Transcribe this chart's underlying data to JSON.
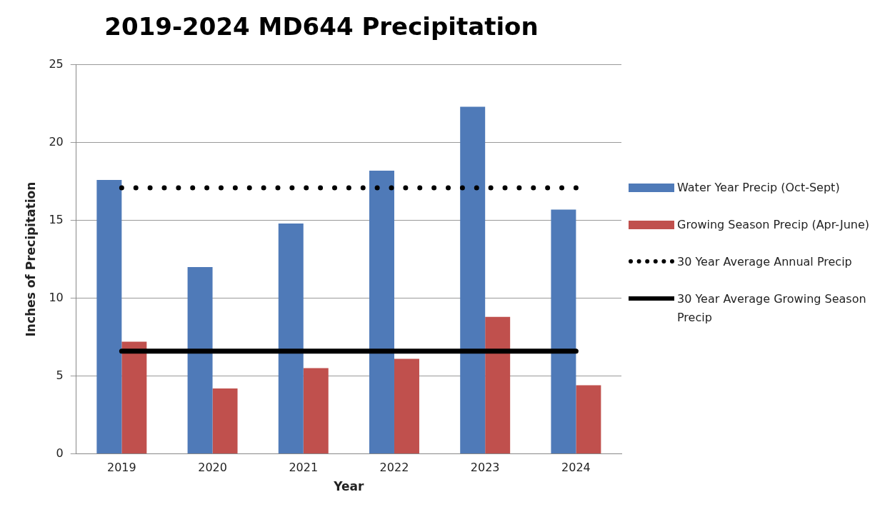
{
  "chart_data": {
    "type": "bar",
    "title": "2019-2024 MD644 Precipitation",
    "xlabel": "Year",
    "ylabel": "Inches of Precipitation",
    "categories": [
      "2019",
      "2020",
      "2021",
      "2022",
      "2023",
      "2024"
    ],
    "series": [
      {
        "name": "Water Year Precip (Oct-Sept)",
        "color": "#4f7ab8",
        "values": [
          17.6,
          12.0,
          14.8,
          18.2,
          22.3,
          15.7
        ]
      },
      {
        "name": "Growing Season Precip (Apr-June)",
        "color": "#c0504d",
        "values": [
          7.2,
          4.2,
          5.5,
          6.1,
          8.8,
          4.4
        ]
      },
      {
        "name": "30 Year Average Annual Precip",
        "type": "line",
        "color": "#000000",
        "line_style": "dotted",
        "values": [
          17.1,
          17.1,
          17.1,
          17.1,
          17.1,
          17.1
        ]
      },
      {
        "name": "30 Year Average Growing Season Precip",
        "type": "line",
        "color": "#000000",
        "line_style": "solid",
        "values": [
          6.6,
          6.6,
          6.6,
          6.6,
          6.6,
          6.6
        ]
      }
    ],
    "ylim": [
      0,
      25
    ],
    "yticks": [
      0,
      5,
      10,
      15,
      20,
      25
    ],
    "grid": "y",
    "legend": "right",
    "marker": "none"
  }
}
